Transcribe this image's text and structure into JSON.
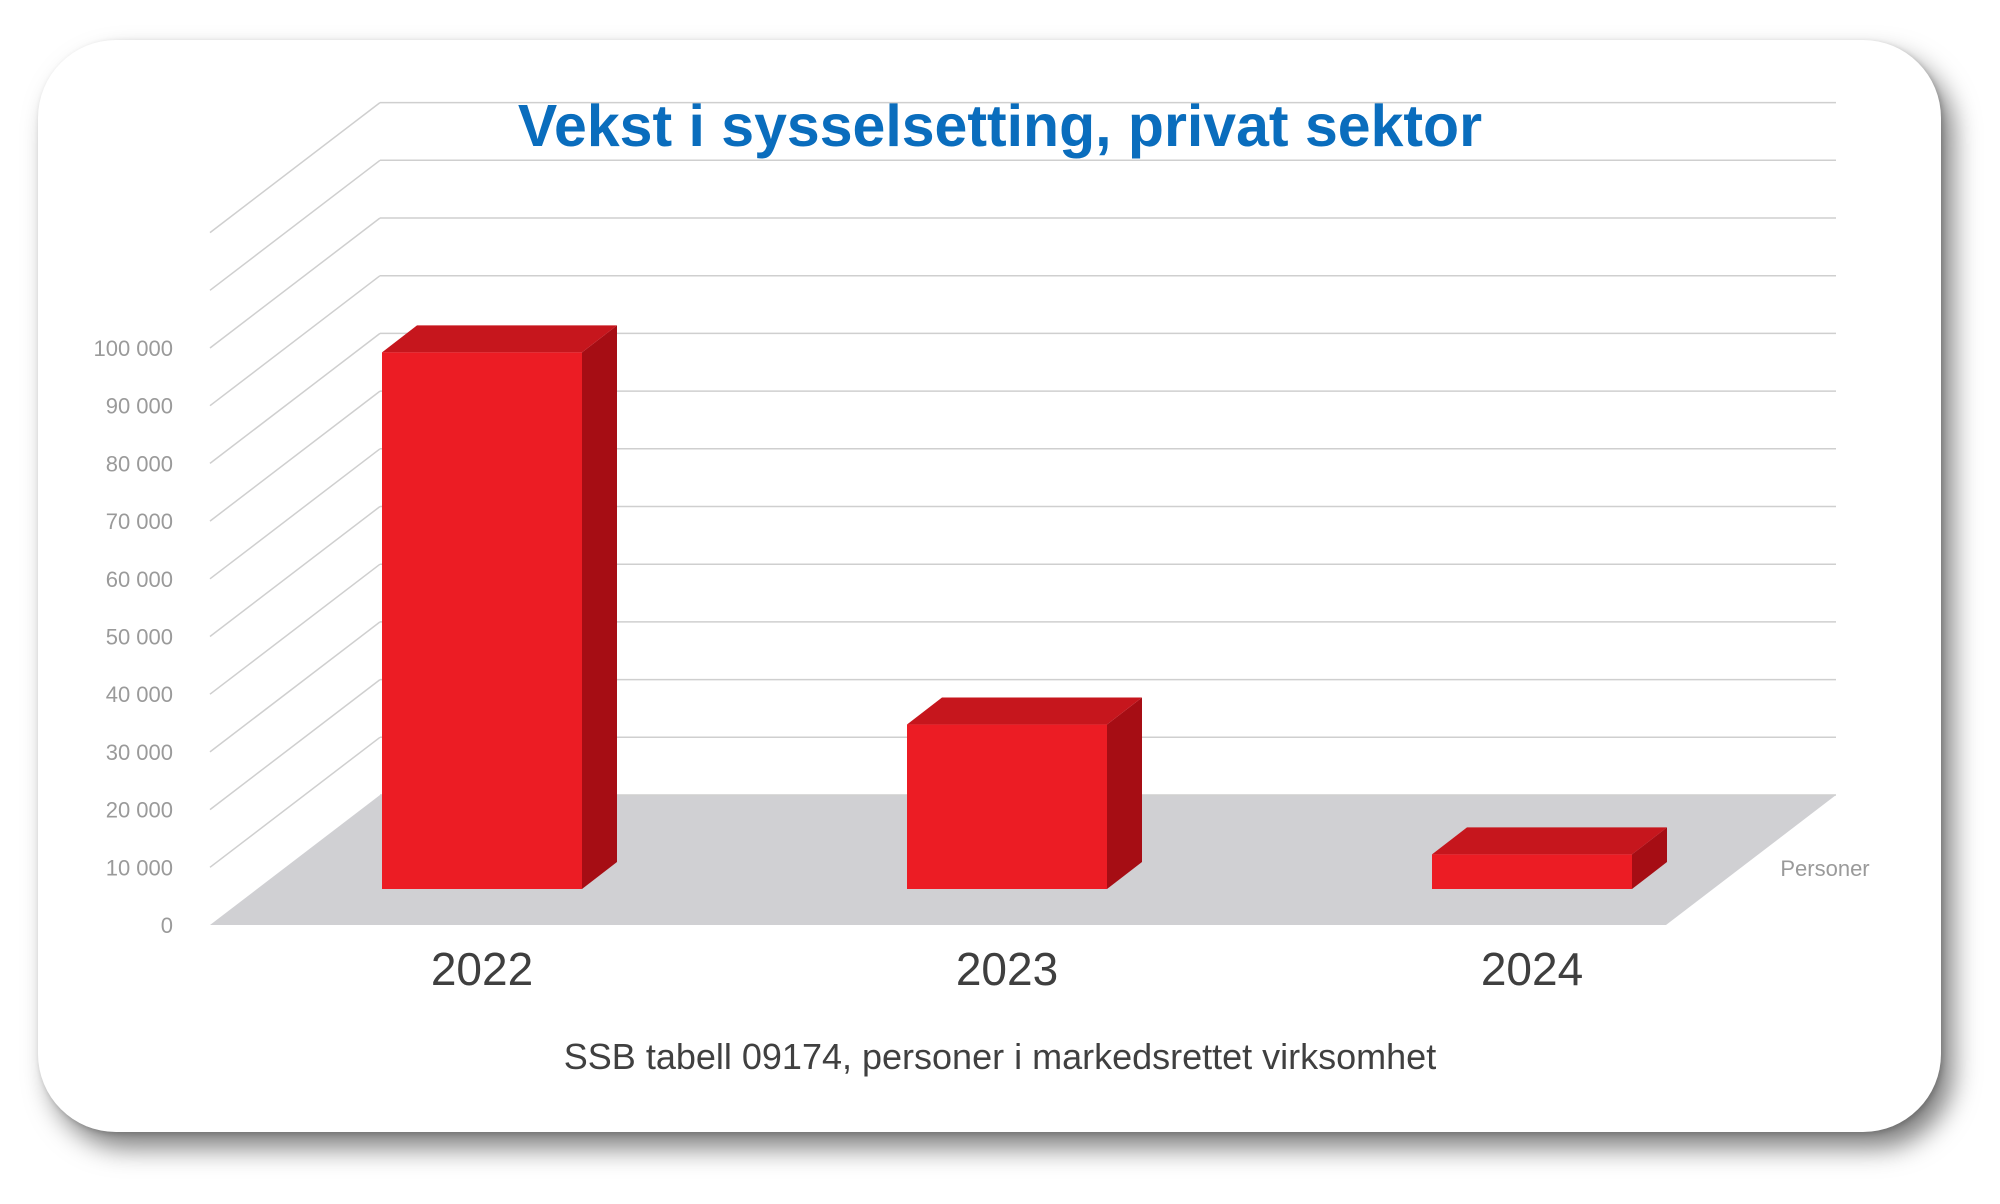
{
  "title": "Vekst i sysselsetting, privat sektor",
  "source_note": "SSB tabell 09174, personer i markedsrettet virksomhet",
  "colors": {
    "title": "#0a6dbd",
    "bar_front": "#ec1c24",
    "bar_top": "#c6161d",
    "bar_side": "#a60d14",
    "floor": "#d0d0d3",
    "grid": "#cfcfcf",
    "tick_text": "#9a9a9a",
    "category_text": "#3f3f3f"
  },
  "chart_data": {
    "type": "bar",
    "three_d": true,
    "categories": [
      "2022",
      "2023",
      "2024"
    ],
    "values": [
      93000,
      28500,
      6000
    ],
    "series_label": "Personer",
    "ylim": [
      0,
      100000
    ],
    "yticks": [
      {
        "value": 0,
        "label": "0"
      },
      {
        "value": 10000,
        "label": "10 000"
      },
      {
        "value": 20000,
        "label": "20 000"
      },
      {
        "value": 30000,
        "label": "30 000"
      },
      {
        "value": 40000,
        "label": "40 000"
      },
      {
        "value": 50000,
        "label": "50 000"
      },
      {
        "value": 60000,
        "label": "60 000"
      },
      {
        "value": 70000,
        "label": "70 000"
      },
      {
        "value": 80000,
        "label": "80 000"
      },
      {
        "value": 90000,
        "label": "90 000"
      },
      {
        "value": 100000,
        "label": "100 000"
      }
    ],
    "grid": true,
    "legend": "none"
  }
}
